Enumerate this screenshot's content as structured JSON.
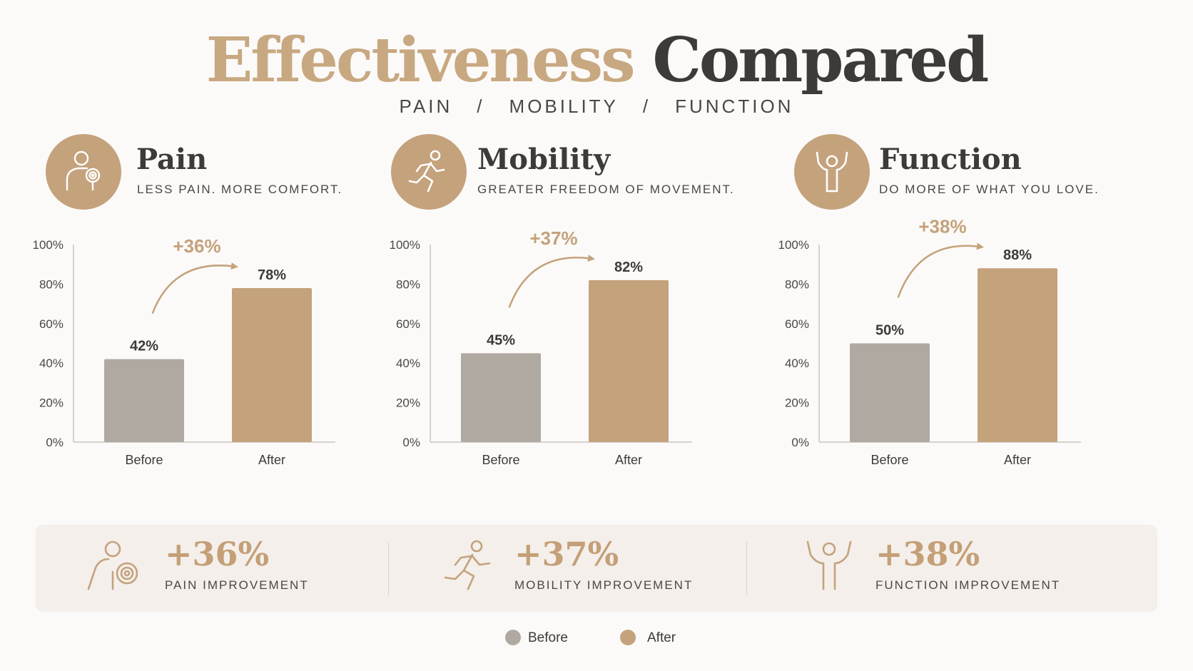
{
  "page": {
    "title_part1": "Effectiveness",
    "title_part2": "Compared",
    "subtitle": [
      "PAIN",
      "MOBILITY",
      "FUNCTION"
    ],
    "subtitle_separator": "/"
  },
  "colors": {
    "before": "#b0a9a2",
    "after": "#c4a27c",
    "accent": "#c8a881",
    "dark": "#3d3b39"
  },
  "sections": [
    {
      "title": "Pain",
      "tagline": "LESS PAIN. MORE COMFORT.",
      "icon": "pain-target-icon"
    },
    {
      "title": "Mobility",
      "tagline": "GREATER FREEDOM OF MOVEMENT.",
      "icon": "running-person-icon"
    },
    {
      "title": "Function",
      "tagline": "DO MORE OF WHAT YOU LOVE.",
      "icon": "raised-arms-person-icon"
    }
  ],
  "chart_data": [
    {
      "type": "bar",
      "categories": [
        "Before",
        "After"
      ],
      "values": [
        42,
        78
      ],
      "value_labels": [
        "42%",
        "78%"
      ],
      "improvement_label": "+36%",
      "ylim": [
        0,
        100
      ],
      "yticks": [
        "0%",
        "20%",
        "40%",
        "60%",
        "80%",
        "100%"
      ],
      "grid": false
    },
    {
      "type": "bar",
      "categories": [
        "Before",
        "After"
      ],
      "values": [
        45,
        82
      ],
      "value_labels": [
        "45%",
        "82%"
      ],
      "improvement_label": "+37%",
      "ylim": [
        0,
        100
      ],
      "yticks": [
        "0%",
        "20%",
        "40%",
        "60%",
        "80%",
        "100%"
      ],
      "grid": false
    },
    {
      "type": "bar",
      "categories": [
        "Before",
        "After"
      ],
      "values": [
        50,
        88
      ],
      "value_labels": [
        "50%",
        "88%"
      ],
      "improvement_label": "+38%",
      "ylim": [
        0,
        100
      ],
      "yticks": [
        "0%",
        "20%",
        "40%",
        "60%",
        "80%",
        "100%"
      ],
      "grid": false
    }
  ],
  "summary": [
    {
      "value": "+36%",
      "label": "PAIN IMPROVEMENT",
      "icon": "pain-target-icon"
    },
    {
      "value": "+37%",
      "label": "MOBILITY IMPROVEMENT",
      "icon": "running-person-icon"
    },
    {
      "value": "+38%",
      "label": "FUNCTION IMPROVEMENT",
      "icon": "raised-arms-person-icon"
    }
  ],
  "legend": [
    {
      "label": "Before",
      "color": "#b0a9a2"
    },
    {
      "label": "After",
      "color": "#c4a27c"
    }
  ]
}
